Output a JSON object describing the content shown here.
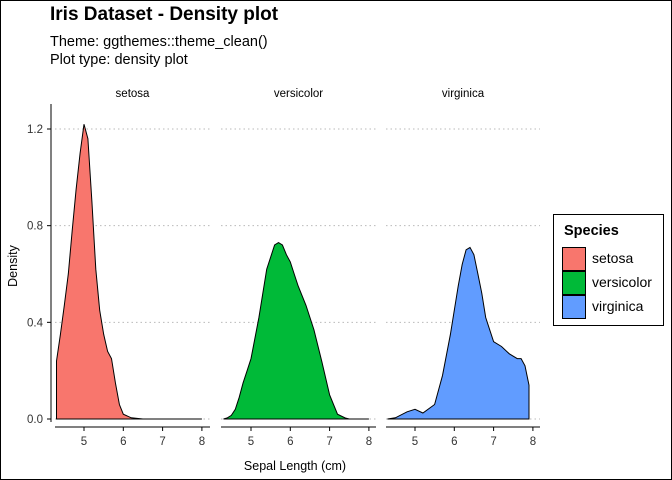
{
  "title": "Iris Dataset - Density plot",
  "subtitle_line1": "Theme: ggthemes::theme_clean()",
  "subtitle_line2": "Plot type: density plot",
  "chart_data": {
    "type": "area",
    "subtype": "density (faceted)",
    "xlabel": "Sepal Length (cm)",
    "ylabel": "Density",
    "ylim": [
      0,
      1.3
    ],
    "yticks": [
      0.0,
      0.4,
      0.8,
      1.2
    ],
    "ytick_labels": [
      "0.0",
      "0.4",
      "0.8",
      "1.2"
    ],
    "grid": "horizontal dotted",
    "legend_title": "Species",
    "legend_position": "right",
    "facets": [
      {
        "name": "setosa",
        "color": "#F8766D",
        "xlim": [
          4.3,
          8.0
        ],
        "xticks": [
          5,
          6,
          7,
          8
        ],
        "x": [
          4.3,
          4.4,
          4.5,
          4.6,
          4.7,
          4.8,
          4.9,
          5.0,
          5.1,
          5.2,
          5.3,
          5.4,
          5.5,
          5.6,
          5.7,
          5.8,
          5.9,
          6.0,
          6.2,
          6.5,
          7.0,
          7.5,
          8.0
        ],
        "y": [
          0.24,
          0.35,
          0.47,
          0.6,
          0.78,
          0.95,
          1.1,
          1.22,
          1.16,
          0.9,
          0.62,
          0.45,
          0.35,
          0.28,
          0.25,
          0.15,
          0.06,
          0.02,
          0.005,
          0.0,
          0.0,
          0.0,
          0.0
        ]
      },
      {
        "name": "versicolor",
        "color": "#00BA38",
        "xlim": [
          4.3,
          8.0
        ],
        "xticks": [
          5,
          6,
          7,
          8
        ],
        "x": [
          4.3,
          4.4,
          4.5,
          4.6,
          4.7,
          4.8,
          4.9,
          5.0,
          5.2,
          5.4,
          5.6,
          5.7,
          5.8,
          5.9,
          6.0,
          6.1,
          6.2,
          6.4,
          6.6,
          6.8,
          7.0,
          7.2,
          7.4,
          7.5,
          8.0
        ],
        "y": [
          0.0,
          0.005,
          0.015,
          0.04,
          0.09,
          0.15,
          0.2,
          0.25,
          0.42,
          0.62,
          0.72,
          0.73,
          0.72,
          0.68,
          0.65,
          0.6,
          0.55,
          0.47,
          0.37,
          0.24,
          0.1,
          0.02,
          0.004,
          0.0,
          0.0
        ]
      },
      {
        "name": "virginica",
        "color": "#619CFF",
        "xlim": [
          4.3,
          8.0
        ],
        "xticks": [
          5,
          6,
          7,
          8
        ],
        "x": [
          4.3,
          4.5,
          4.8,
          5.0,
          5.2,
          5.5,
          5.7,
          5.9,
          6.1,
          6.2,
          6.3,
          6.4,
          6.5,
          6.6,
          6.7,
          6.8,
          7.0,
          7.2,
          7.4,
          7.6,
          7.7,
          7.8,
          7.9
        ],
        "y": [
          0.0,
          0.005,
          0.03,
          0.04,
          0.025,
          0.06,
          0.18,
          0.35,
          0.55,
          0.64,
          0.7,
          0.71,
          0.68,
          0.6,
          0.52,
          0.42,
          0.32,
          0.3,
          0.27,
          0.25,
          0.25,
          0.22,
          0.14
        ]
      }
    ]
  }
}
